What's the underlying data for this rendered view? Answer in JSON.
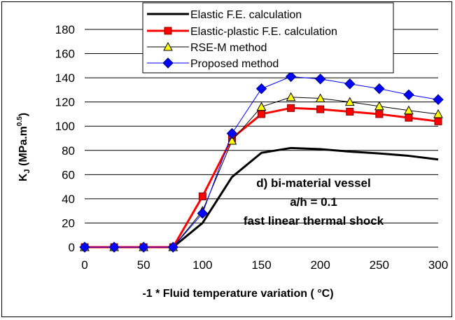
{
  "chart_data": {
    "type": "line",
    "xlabel": "-1 * Fluid temperature variation ( °C)",
    "ylabel_main": "K",
    "ylabel_sub": "J",
    "ylabel_rest": " (MPa.m",
    "ylabel_sup": "0.5",
    "ylabel_end": ")",
    "xlim": [
      0,
      300
    ],
    "ylim": [
      0,
      180
    ],
    "x_ticks": [
      0,
      50,
      100,
      150,
      200,
      250,
      300
    ],
    "y_ticks": [
      0,
      20,
      40,
      60,
      80,
      100,
      120,
      140,
      160,
      180
    ],
    "grid": "horizontal",
    "legend_position": "top",
    "annotations": [
      "d) bi-material vessel",
      "a/h = 0.1",
      "fast linear thermal shock"
    ],
    "series": [
      {
        "name": "Elastic F.E. calculation",
        "color": "#000000",
        "marker": "none",
        "x": [
          0,
          25,
          50,
          75,
          100,
          125,
          150,
          175,
          200,
          225,
          250,
          275,
          300
        ],
        "values": [
          0,
          0,
          0,
          0,
          20,
          58,
          78,
          82,
          81,
          79,
          77.5,
          75.5,
          72.5
        ]
      },
      {
        "name": "Elastic-plastic F.E. calculation",
        "color": "#ff0000",
        "marker": "square",
        "x": [
          0,
          25,
          50,
          75,
          100,
          125,
          150,
          175,
          200,
          225,
          250,
          275,
          300
        ],
        "values": [
          0,
          0,
          0,
          0,
          42,
          90,
          110,
          115,
          114,
          112,
          110,
          107,
          104
        ]
      },
      {
        "name": "RSE-M method",
        "color": "#000000",
        "marker": "triangle",
        "x": [
          0,
          25,
          50,
          75,
          100,
          125,
          150,
          175,
          200,
          225,
          250,
          275,
          300
        ],
        "values": [
          0,
          0,
          0,
          0,
          30,
          88,
          116,
          124,
          123,
          120,
          116.5,
          113,
          110
        ]
      },
      {
        "name": "Proposed method",
        "color": "#0000ff",
        "marker": "diamond",
        "x": [
          0,
          25,
          50,
          75,
          100,
          125,
          150,
          175,
          200,
          225,
          250,
          275,
          300
        ],
        "values": [
          0,
          0,
          0,
          0,
          28,
          94,
          131,
          141,
          139,
          135,
          131,
          126,
          122
        ]
      }
    ]
  }
}
